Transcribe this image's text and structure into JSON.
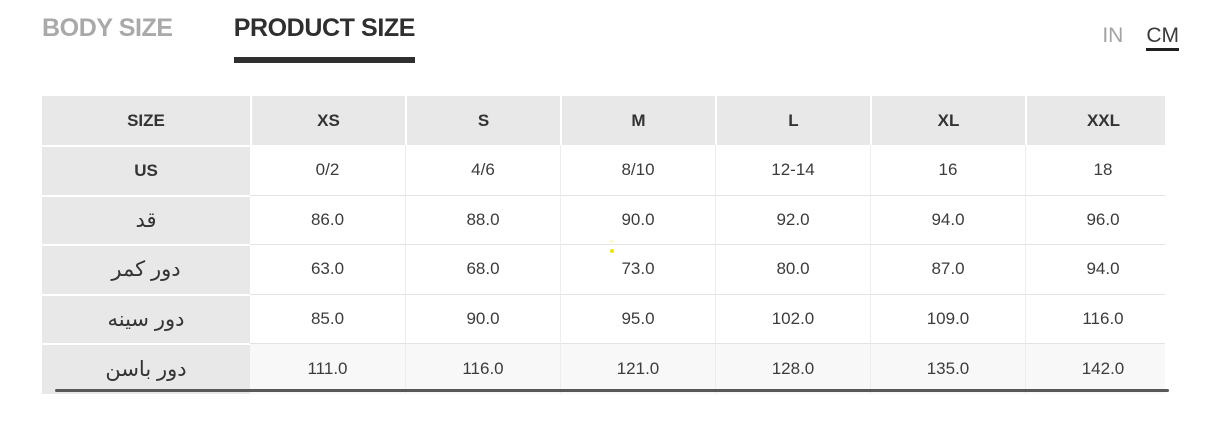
{
  "tabs": {
    "body_size": "BODY SIZE",
    "product_size": "PRODUCT SIZE"
  },
  "units": {
    "inch": "IN",
    "cm": "CM"
  },
  "size_chart": {
    "columns": [
      "SIZE",
      "XS",
      "S",
      "M",
      "L",
      "XL",
      "XXL"
    ],
    "rows": [
      {
        "label": "US",
        "values": [
          "0/2",
          "4/6",
          "8/10",
          "12-14",
          "16",
          "18"
        ]
      },
      {
        "label": "قد",
        "values": [
          "86.0",
          "88.0",
          "90.0",
          "92.0",
          "94.0",
          "96.0"
        ]
      },
      {
        "label": "دور کمر",
        "values": [
          "63.0",
          "68.0",
          "73.0",
          "80.0",
          "87.0",
          "94.0"
        ]
      },
      {
        "label": "دور سینه",
        "values": [
          "85.0",
          "90.0",
          "95.0",
          "102.0",
          "109.0",
          "116.0"
        ]
      },
      {
        "label": "دور باسن",
        "values": [
          "111.0",
          "116.0",
          "121.0",
          "128.0",
          "135.0",
          "142.0"
        ]
      }
    ]
  },
  "colors": {
    "tab_active": "#2f2f2f",
    "tab_inactive": "#a9a9a9",
    "unit_active": "#3a3a3a",
    "unit_inactive": "#a3a3a3",
    "header_bg": "#e8e8e8",
    "scrollbar_thumb": "#58585a"
  }
}
